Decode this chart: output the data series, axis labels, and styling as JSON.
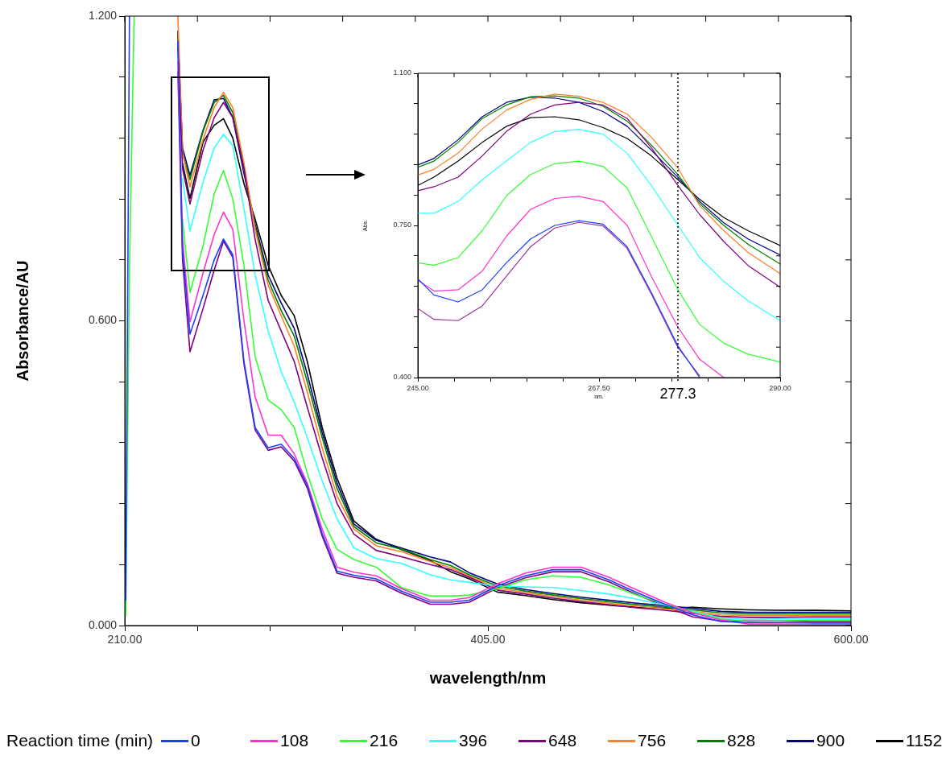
{
  "chart_data": [
    {
      "type": "line",
      "xlabel": "wavelength/nm",
      "ylabel": "Absorbance/AU",
      "legend_title": "Reaction time (min)",
      "legend": "bottom",
      "grid": false,
      "marker": "none",
      "line_style": "solid",
      "xlim": [
        210,
        600
      ],
      "ylim": [
        0,
        1.2
      ],
      "xticks": [
        {
          "value": 210,
          "label": "210.00"
        },
        {
          "value": 249,
          "label": null
        },
        {
          "value": 288,
          "label": null
        },
        {
          "value": 327,
          "label": null
        },
        {
          "value": 366,
          "label": null
        },
        {
          "value": 405,
          "label": "405.00"
        },
        {
          "value": 444,
          "label": null
        },
        {
          "value": 483,
          "label": null
        },
        {
          "value": 522,
          "label": null
        },
        {
          "value": 561,
          "label": null
        },
        {
          "value": 600,
          "label": "600.00"
        }
      ],
      "yticks": [
        {
          "value": 0,
          "label": "0.000"
        },
        {
          "value": 0.12,
          "label": null
        },
        {
          "value": 0.24,
          "label": null
        },
        {
          "value": 0.36,
          "label": null
        },
        {
          "value": 0.48,
          "label": null
        },
        {
          "value": 0.6,
          "label": "0.600"
        },
        {
          "value": 0.72,
          "label": null
        },
        {
          "value": 0.84,
          "label": null
        },
        {
          "value": 0.96,
          "label": null
        },
        {
          "value": 1.08,
          "label": null
        },
        {
          "value": 1.2,
          "label": "1.200"
        }
      ],
      "x": [
        210.5,
        212.5,
        215,
        225,
        238.5,
        241,
        245,
        252,
        258,
        263,
        268,
        274,
        280,
        287,
        294,
        301,
        308,
        316,
        324,
        333,
        345,
        359,
        374,
        385,
        395,
        410,
        425,
        440,
        455,
        470,
        485,
        500,
        515,
        530,
        545,
        560,
        580,
        600
      ],
      "series": [
        {
          "name": "0",
          "color": "#1f3fff",
          "values": [
            0.05,
            1.2,
            null,
            null,
            1.15,
            0.74,
            0.574,
            0.65,
            0.72,
            0.761,
            0.73,
            0.52,
            0.39,
            0.35,
            0.357,
            0.329,
            0.276,
            0.181,
            0.107,
            0.099,
            0.092,
            0.067,
            0.046,
            0.046,
            0.05,
            0.078,
            0.098,
            0.11,
            0.11,
            0.09,
            0.065,
            0.042,
            0.021,
            0.008,
            0.006,
            0.006,
            0.005,
            0.005
          ]
        },
        {
          "name": "108",
          "color": "#ff33cc",
          "values": [
            null,
            null,
            null,
            null,
            1.11,
            0.76,
            0.598,
            0.694,
            0.77,
            0.814,
            0.78,
            0.6,
            0.45,
            0.375,
            0.375,
            0.338,
            0.28,
            0.19,
            0.115,
            0.105,
            0.098,
            0.072,
            0.05,
            0.05,
            0.055,
            0.082,
            0.103,
            0.115,
            0.115,
            0.095,
            0.07,
            0.046,
            0.025,
            0.011,
            0.003,
            0.003,
            0.002,
            0.002
          ]
        },
        {
          "name": "216",
          "color": "#33ff33",
          "values": [
            0.02,
            0.7,
            1.2,
            null,
            null,
            0.8,
            0.656,
            0.747,
            0.85,
            0.896,
            0.84,
            0.709,
            0.53,
            0.444,
            0.425,
            0.39,
            0.3,
            0.21,
            0.15,
            0.13,
            0.115,
            0.074,
            0.058,
            0.058,
            0.06,
            0.072,
            0.09,
            0.098,
            0.095,
            0.08,
            0.06,
            0.042,
            0.026,
            0.013,
            0.008,
            0.009,
            0.011,
            0.011
          ]
        },
        {
          "name": "396",
          "color": "#33ffff",
          "values": [
            null,
            null,
            null,
            null,
            null,
            0.88,
            0.777,
            0.873,
            0.94,
            0.967,
            0.945,
            0.82,
            0.69,
            0.58,
            0.5,
            0.44,
            0.37,
            0.285,
            0.21,
            0.153,
            0.132,
            0.122,
            0.1,
            0.09,
            0.085,
            0.078,
            0.076,
            0.075,
            0.069,
            0.062,
            0.052,
            0.04,
            0.028,
            0.015,
            0.012,
            0.013,
            0.014,
            0.014
          ]
        },
        {
          "name": "648",
          "color": "#800080",
          "values": [
            null,
            null,
            null,
            null,
            1.14,
            0.9,
            0.83,
            0.936,
            1.0,
            1.03,
            1.0,
            0.9,
            0.76,
            0.64,
            0.58,
            0.52,
            0.43,
            0.33,
            0.24,
            0.18,
            0.148,
            0.135,
            0.12,
            0.11,
            0.095,
            0.07,
            0.062,
            0.054,
            0.047,
            0.041,
            0.035,
            0.03,
            0.024,
            0.018,
            0.016,
            0.016,
            0.017,
            0.017
          ]
        },
        {
          "name": "756",
          "color": "#ff7f27",
          "values": [
            null,
            null,
            null,
            null,
            1.2,
            0.93,
            0.864,
            0.957,
            1.02,
            1.05,
            1.02,
            0.91,
            0.78,
            0.67,
            0.61,
            0.55,
            0.46,
            0.35,
            0.255,
            0.19,
            0.157,
            0.145,
            0.126,
            0.114,
            0.097,
            0.074,
            0.065,
            0.057,
            0.05,
            0.044,
            0.038,
            0.033,
            0.028,
            0.021,
            0.02,
            0.02,
            0.02,
            0.02
          ]
        },
        {
          "name": "828",
          "color": "#008000",
          "values": [
            null,
            null,
            null,
            null,
            1.16,
            0.93,
            0.878,
            0.973,
            1.03,
            1.044,
            1.01,
            0.9,
            0.785,
            0.68,
            0.62,
            0.57,
            0.48,
            0.37,
            0.27,
            0.195,
            0.163,
            0.15,
            0.13,
            0.118,
            0.1,
            0.078,
            0.068,
            0.06,
            0.053,
            0.047,
            0.041,
            0.036,
            0.031,
            0.025,
            0.023,
            0.023,
            0.023,
            0.023
          ]
        },
        {
          "name": "900",
          "color": "#000080",
          "values": [
            null,
            null,
            null,
            null,
            1.17,
            0.94,
            0.886,
            0.975,
            1.035,
            1.038,
            1.0,
            0.89,
            0.79,
            0.69,
            0.635,
            0.585,
            0.495,
            0.38,
            0.28,
            0.2,
            0.168,
            0.152,
            0.135,
            0.125,
            0.104,
            0.082,
            0.071,
            0.063,
            0.056,
            0.05,
            0.044,
            0.039,
            0.034,
            0.028,
            0.026,
            0.026,
            0.026,
            0.026
          ]
        },
        {
          "name": "1152",
          "color": "#000000",
          "values": [
            null,
            null,
            null,
            null,
            null,
            0.91,
            0.841,
            0.952,
            0.985,
            0.998,
            0.96,
            0.87,
            0.8,
            0.709,
            0.65,
            0.61,
            0.52,
            0.39,
            0.29,
            0.206,
            0.17,
            0.149,
            0.128,
            0.106,
            0.092,
            0.066,
            0.059,
            0.051,
            0.045,
            0.04,
            0.036,
            0.034,
            0.036,
            0.033,
            0.031,
            0.03,
            0.03,
            0.029
          ]
        },
        {
          "color": "#800080",
          "values": [
            null,
            null,
            null,
            null,
            1.09,
            0.72,
            0.539,
            0.624,
            0.7,
            0.757,
            0.725,
            0.515,
            0.385,
            0.345,
            0.352,
            0.324,
            0.271,
            0.176,
            0.103,
            0.095,
            0.088,
            0.063,
            0.042,
            0.042,
            0.046,
            0.074,
            0.094,
            0.106,
            0.106,
            0.086,
            0.061,
            0.038,
            0.017,
            0.009,
            0.009,
            0.009,
            0.008,
            0.008
          ]
        }
      ]
    },
    {
      "type": "line",
      "xlabel": "nm.",
      "ylabel": "Abs.",
      "grid": false,
      "marker": "none",
      "line_style": "solid",
      "xlim": [
        245,
        290
      ],
      "ylim": [
        0.4,
        1.1
      ],
      "xticks": [
        {
          "value": 245,
          "label": "245.00"
        },
        {
          "value": 249.5,
          "label": null
        },
        {
          "value": 254,
          "label": null
        },
        {
          "value": 258.5,
          "label": null
        },
        {
          "value": 263,
          "label": null
        },
        {
          "value": 267.5,
          "label": "267.50"
        },
        {
          "value": 272,
          "label": null
        },
        {
          "value": 276.5,
          "label": null
        },
        {
          "value": 281,
          "label": null
        },
        {
          "value": 285.5,
          "label": null
        },
        {
          "value": 290,
          "label": "290.00"
        }
      ],
      "yticks": [
        {
          "value": 0.4,
          "label": "0.400"
        },
        {
          "value": 0.47,
          "label": null
        },
        {
          "value": 0.54,
          "label": null
        },
        {
          "value": 0.61,
          "label": null
        },
        {
          "value": 0.68,
          "label": null
        },
        {
          "value": 0.75,
          "label": "0.750"
        },
        {
          "value": 0.82,
          "label": null
        },
        {
          "value": 0.89,
          "label": null
        },
        {
          "value": 0.96,
          "label": null
        },
        {
          "value": 1.03,
          "label": null
        },
        {
          "value": 1.1,
          "label": "1.100"
        }
      ],
      "ref_lines": [
        {
          "axis": "x",
          "value": 277.3,
          "label": "277.3",
          "color": "#000000",
          "line_style": "dotted"
        }
      ],
      "x": [
        245,
        247,
        250,
        253,
        256,
        259,
        262,
        265,
        268,
        271,
        274,
        277.3,
        280,
        283,
        286,
        290
      ],
      "series": [
        {
          "color": "#1f3fff",
          "values": [
            0.627,
            0.59,
            0.574,
            0.602,
            0.664,
            0.719,
            0.75,
            0.761,
            0.753,
            0.701,
            0.596,
            0.473,
            0.4,
            null,
            null,
            null
          ]
        },
        {
          "color": "#ff33cc",
          "values": [
            0.624,
            0.599,
            0.602,
            0.645,
            0.725,
            0.787,
            0.812,
            0.817,
            0.805,
            0.75,
            0.633,
            0.516,
            0.442,
            0.4,
            null,
            null
          ]
        },
        {
          "color": "#33ff33",
          "values": [
            0.664,
            0.658,
            0.676,
            0.738,
            0.818,
            0.867,
            0.892,
            0.898,
            0.886,
            0.836,
            0.725,
            0.602,
            0.522,
            0.479,
            0.454,
            0.436
          ]
        },
        {
          "color": "#33ffff",
          "values": [
            0.778,
            0.778,
            0.805,
            0.855,
            0.898,
            0.941,
            0.966,
            0.971,
            0.96,
            0.916,
            0.842,
            0.75,
            0.676,
            0.621,
            0.577,
            0.531
          ]
        },
        {
          "color": "#800080",
          "values": [
            0.83,
            0.839,
            0.861,
            0.91,
            0.966,
            1.006,
            1.027,
            1.033,
            1.027,
            0.996,
            0.929,
            0.842,
            0.775,
            0.713,
            0.658,
            0.608
          ]
        },
        {
          "color": "#ff7f27",
          "values": [
            0.866,
            0.879,
            0.916,
            0.972,
            1.015,
            1.04,
            1.052,
            1.047,
            1.033,
            1.006,
            0.953,
            0.882,
            0.795,
            0.738,
            0.688,
            0.639
          ]
        },
        {
          "color": "#008000",
          "values": [
            0.884,
            0.898,
            0.941,
            0.996,
            1.027,
            1.046,
            1.048,
            1.043,
            1.024,
            0.99,
            0.935,
            0.867,
            0.8,
            0.75,
            0.707,
            0.661
          ]
        },
        {
          "color": "#000080",
          "values": [
            0.889,
            0.904,
            0.947,
            1.0,
            1.033,
            1.045,
            1.043,
            1.033,
            1.012,
            0.978,
            0.923,
            0.861,
            0.805,
            0.756,
            0.719,
            0.682
          ]
        },
        {
          "color": "#000000",
          "values": [
            0.842,
            0.861,
            0.898,
            0.941,
            0.978,
            0.998,
            1.0,
            0.993,
            0.975,
            0.95,
            0.91,
            0.855,
            0.81,
            0.768,
            0.738,
            0.704
          ]
        },
        {
          "color": "#993399",
          "values": [
            0.559,
            0.534,
            0.531,
            0.565,
            0.633,
            0.701,
            0.744,
            0.757,
            0.749,
            0.697,
            0.592,
            0.469,
            0.404,
            null,
            null,
            null
          ]
        }
      ]
    }
  ]
}
